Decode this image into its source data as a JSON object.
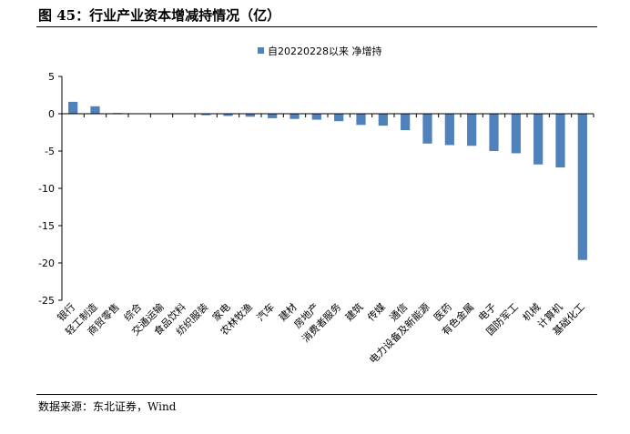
{
  "figure": {
    "title": "图 45：行业产业资本增减持情况（亿）",
    "source": "数据来源：东北证券，Wind"
  },
  "chart_data": {
    "type": "bar",
    "legend_position": "top-center",
    "grid": false,
    "bar_color": "#4f81bd",
    "series": [
      {
        "name": "自20220228以来 净增持",
        "values": [
          1.6,
          1.0,
          0.1,
          0.05,
          0.0,
          0.0,
          -0.2,
          -0.3,
          -0.4,
          -0.6,
          -0.7,
          -0.8,
          -1.0,
          -1.5,
          -1.6,
          -2.2,
          -4.0,
          -4.2,
          -4.3,
          -5.0,
          -5.3,
          -6.8,
          -7.2,
          -19.6
        ]
      }
    ],
    "categories": [
      "银行",
      "轻工制造",
      "商贸零售",
      "综合",
      "交通运输",
      "食品饮料",
      "纺织服装",
      "家电",
      "农林牧渔",
      "汽车",
      "建材",
      "房地产",
      "消费者服务",
      "建筑",
      "传媒",
      "通信",
      "电力设备及新能源",
      "医药",
      "有色金属",
      "电子",
      "国防军工",
      "机械",
      "计算机",
      "基础化工"
    ],
    "ylim": [
      -25,
      5
    ],
    "yticks": [
      5,
      0,
      -5,
      -10,
      -15,
      -20,
      -25
    ]
  }
}
